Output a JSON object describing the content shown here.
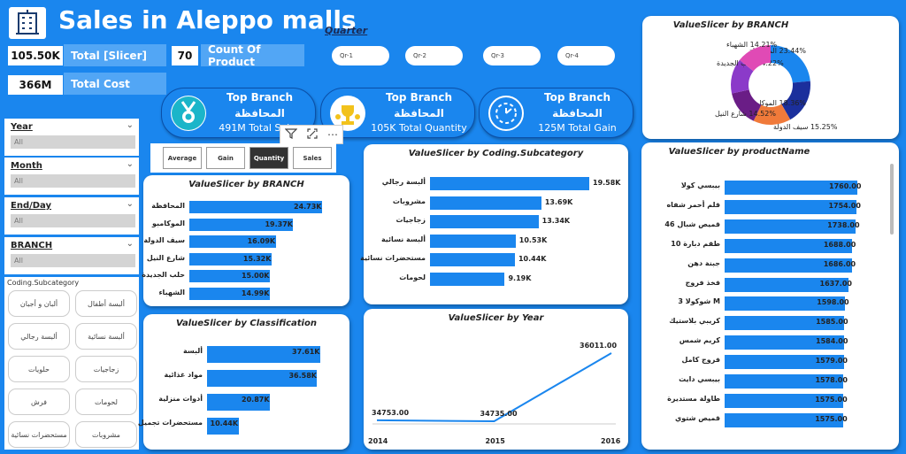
{
  "header": {
    "title": "Sales in Aleppo malls",
    "logo_icon": "building-icon"
  },
  "kpis": [
    {
      "value": "105.50K",
      "label": "Total [Slicer]"
    },
    {
      "value": "70",
      "label": "Count Of Product"
    },
    {
      "value": "366M",
      "label": "Total Cost"
    }
  ],
  "quarter": {
    "label": "Quarter",
    "options": [
      "Qr-1",
      "Qr-2",
      "Qr-3",
      "Qr-4"
    ]
  },
  "top_cards": [
    {
      "icon": "medal-icon",
      "title": "Top Branch",
      "branch": "المحافظة",
      "value": "491M Total Sales"
    },
    {
      "icon": "trophy-icon",
      "title": "Top Branch",
      "branch": "المحافظة",
      "value": "105K Total Quantity"
    },
    {
      "icon": "clock-gain-icon",
      "title": "Top Branch",
      "branch": "المحافظة",
      "value": "125M Total Gain"
    }
  ],
  "visual_header_icons": [
    "filter-icon",
    "focus-mode-icon",
    "more-options-icon"
  ],
  "slicers": [
    {
      "label": "Year",
      "value": "All"
    },
    {
      "label": "Month",
      "value": "All"
    },
    {
      "label": "End/Day",
      "value": "All"
    },
    {
      "label": "BRANCH",
      "value": "All"
    }
  ],
  "coding_slicer": {
    "title": "Coding.Subcategory",
    "items": [
      "ألبسة أطفال",
      "ألبان و أجبان",
      "ألبسة نسائية",
      "ألبسة رجالي",
      "زجاجيات",
      "حلويات",
      "لحومات",
      "فرش",
      "مشروبات",
      "مستحضرات نسائية"
    ]
  },
  "measure_tabs": {
    "items": [
      "Average",
      "Gain",
      "Quantity",
      "Sales"
    ],
    "selected": "Quantity"
  },
  "branch_bar": {
    "title": "ValueSlicer by BRANCH",
    "chart_data": {
      "type": "bar",
      "orientation": "horizontal",
      "categories": [
        "المحافظة",
        "الموكامبو",
        "سيف الدولة",
        "شارع النيل",
        "حلب الجديدة",
        "الشهباء"
      ],
      "values": [
        24.73,
        19.37,
        16.09,
        15.32,
        15.0,
        14.99
      ],
      "labels": [
        "24.73K",
        "19.37K",
        "16.09K",
        "15.32K",
        "15.00K",
        "14.99K"
      ]
    }
  },
  "coding_bar": {
    "title": "ValueSlicer by Coding.Subcategory",
    "chart_data": {
      "type": "bar",
      "orientation": "horizontal",
      "categories": [
        "ألبسة رجالي",
        "مشروبات",
        "زجاجيات",
        "ألبسة نسائية",
        "مستحضرات نسائية",
        "لحومات"
      ],
      "values": [
        19.58,
        13.69,
        13.34,
        10.53,
        10.44,
        9.19
      ],
      "labels": [
        "19.58K",
        "13.69K",
        "13.34K",
        "10.53K",
        "10.44K",
        "9.19K"
      ]
    }
  },
  "class_bar": {
    "title": "ValueSlicer by Classification",
    "chart_data": {
      "type": "bar",
      "orientation": "horizontal",
      "categories": [
        "ألبسة",
        "مواد غذائية",
        "أدوات منزلية",
        "مستحضرات تجميل"
      ],
      "values": [
        37.61,
        36.58,
        20.87,
        10.44
      ],
      "labels": [
        "37.61K",
        "36.58K",
        "20.87K",
        "10.44K"
      ]
    }
  },
  "year_line": {
    "title": "ValueSlicer by Year",
    "chart_data": {
      "type": "line",
      "x": [
        "2014",
        "2015",
        "2016"
      ],
      "values": [
        34753.0,
        34735.0,
        36011.0
      ],
      "labels": [
        "34753.00",
        "34735.00",
        "36011.00"
      ]
    }
  },
  "donut": {
    "title": "ValueSlicer by BRANCH",
    "chart_data": {
      "type": "pie",
      "categories": [
        "المحافظة",
        "الموكامبو",
        "سيف الدولة",
        "شارع النيل",
        "حلب الجديدة",
        "الشهباء"
      ],
      "values": [
        23.44,
        18.36,
        15.25,
        14.52,
        14.22,
        14.21
      ],
      "labels": [
        "23.44% المحافظة",
        "18.36% الموكامبو",
        "15.25% سيف الدولة",
        "14.52% شارع النيل",
        "14.22% حلب الجديدة",
        "14.21% الشهباء"
      ],
      "colors": [
        "#1a86ee",
        "#1b2f9c",
        "#f07a3a",
        "#6a1d86",
        "#8b3ac9",
        "#e04ab5"
      ]
    }
  },
  "product_bar": {
    "title": "ValueSlicer by productName",
    "chart_data": {
      "type": "bar",
      "orientation": "horizontal",
      "categories": [
        "بيبسي كولا",
        "قلم أحمر شفاه",
        "قميص شبال 46",
        "طقم دبارة 10",
        "جبنة دهن",
        "فخذ فروج",
        "M شوكولا 3",
        "كريبي بلاستيك",
        "كريم شمس",
        "فروج كامل",
        "بيبسي دايت",
        "طاولة مستديرة",
        "قميص شتوي"
      ],
      "values": [
        1760.0,
        1754.0,
        1738.0,
        1688.0,
        1686.0,
        1637.0,
        1598.0,
        1585.0,
        1584.0,
        1579.0,
        1578.0,
        1575.0,
        1575.0
      ],
      "labels": [
        "1760.00",
        "1754.00",
        "1738.00",
        "1688.00",
        "1686.00",
        "1637.00",
        "1598.00",
        "1585.00",
        "1584.00",
        "1579.00",
        "1578.00",
        "1575.00",
        "1575.00"
      ]
    }
  }
}
